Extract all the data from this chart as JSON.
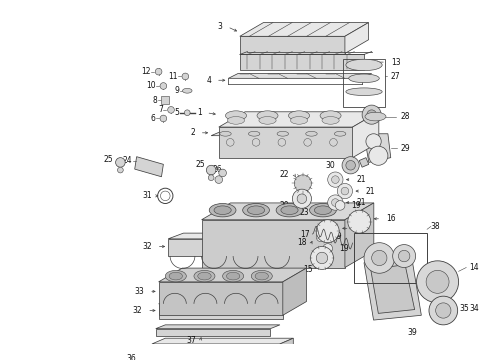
{
  "bg_color": "#ffffff",
  "line_color": "#404040",
  "label_color": "#111111",
  "figsize": [
    4.9,
    3.6
  ],
  "dpi": 100,
  "label_fs": 5.5,
  "arrow_lw": 0.5,
  "part_lw": 0.55,
  "part_fc": "#e8e8e8",
  "part_fc2": "#d4d4d4"
}
